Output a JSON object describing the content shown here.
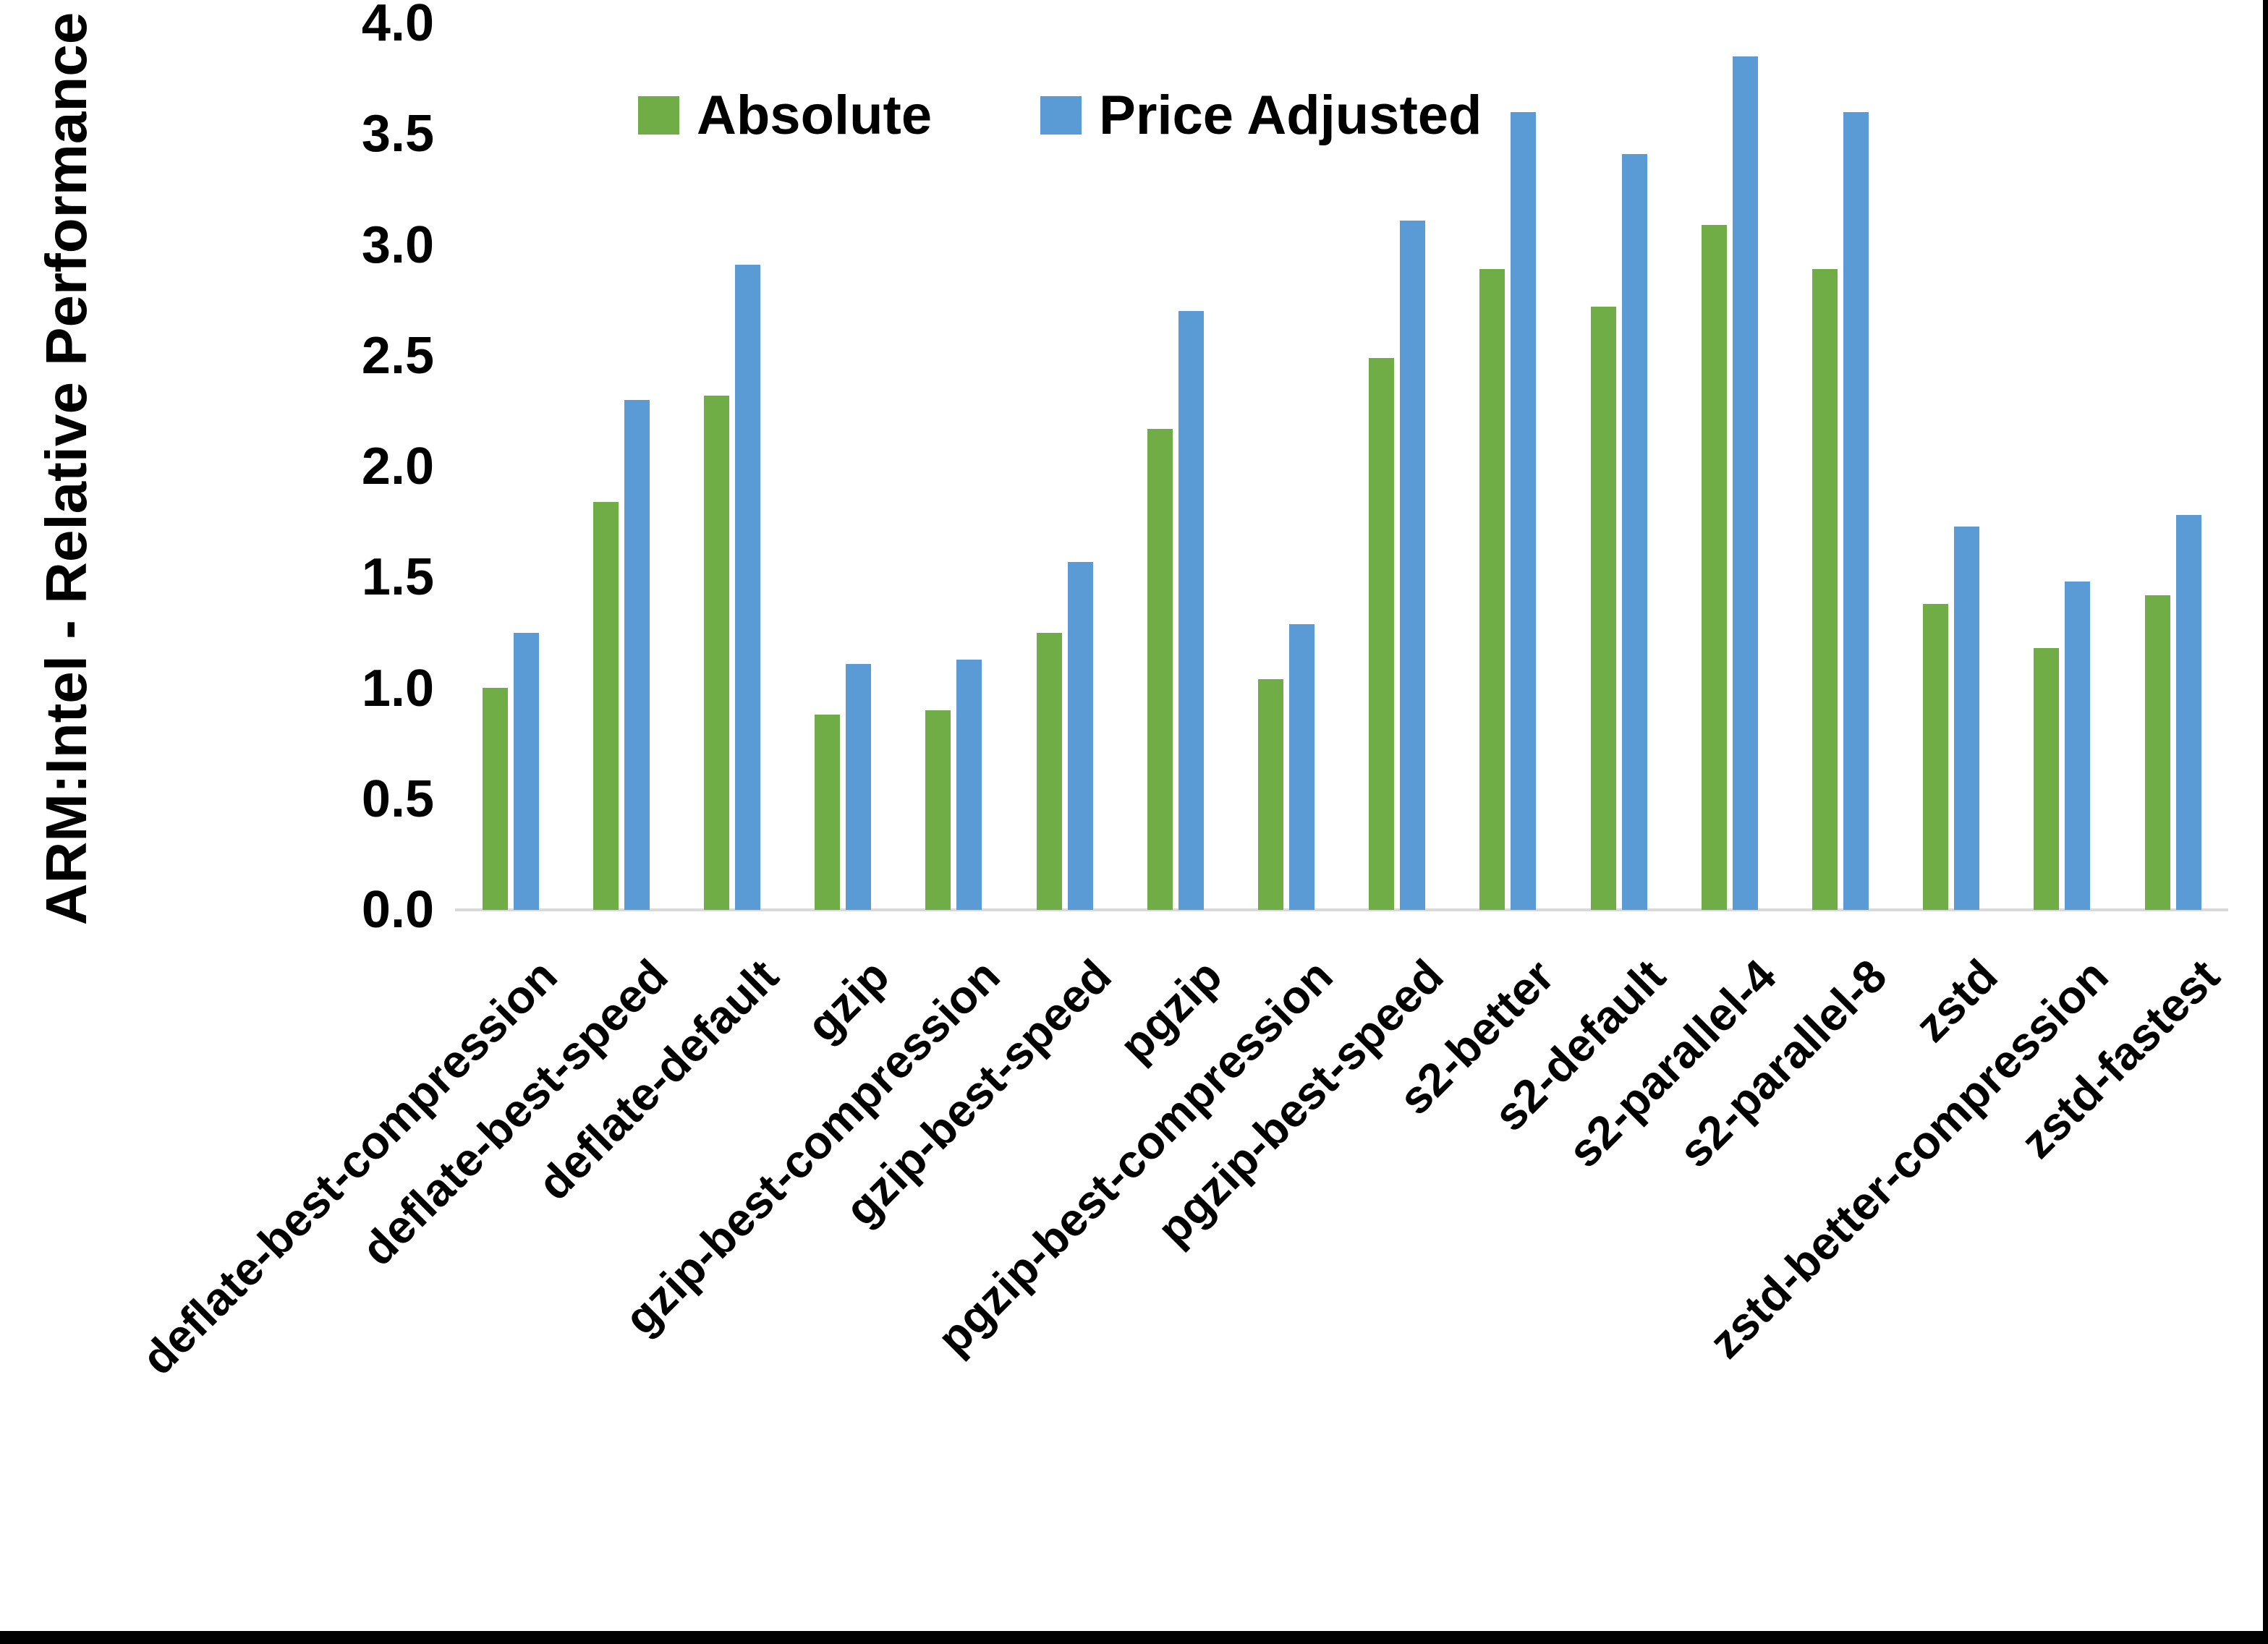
{
  "y_axis": {
    "title": "ARM:Intel - Relative Performance",
    "tick_labels": [
      "4.0",
      "3.5",
      "3.0",
      "2.5",
      "2.0",
      "1.5",
      "1.0",
      "0.5",
      "0.0"
    ]
  },
  "legend": [
    {
      "label": "Absolute",
      "color": "#70AD47"
    },
    {
      "label": "Price Adjusted",
      "color": "#5B9BD5"
    }
  ],
  "colors": {
    "absolute_green": "#70AD47",
    "price_adjusted_blue": "#5B9BD5",
    "axis_line_gray": "#D9D9D9",
    "border_black": "#000000"
  },
  "chart_data": {
    "type": "bar",
    "title": "",
    "xlabel": "",
    "ylabel": "ARM:Intel - Relative Performance",
    "ylim": [
      0,
      4.0
    ],
    "y_tick_step": 0.5,
    "grid": false,
    "legend_position": "top-center",
    "categories": [
      "deflate-best-compression",
      "deflate-best-speed",
      "deflate-default",
      "gzip",
      "gzip-best-compression",
      "gzip-best-speed",
      "pgzip",
      "pgzip-best-compression",
      "pgzip-best-speed",
      "s2-better",
      "s2-default",
      "s2-parallel-4",
      "s2-parallel-8",
      "zstd",
      "zstd-better-compression",
      "zstd-fastest"
    ],
    "series": [
      {
        "name": "Absolute",
        "color": "#70AD47",
        "values": [
          1.0,
          1.84,
          2.32,
          0.88,
          0.9,
          1.25,
          2.17,
          1.04,
          2.49,
          2.89,
          2.72,
          3.09,
          2.89,
          1.38,
          1.18,
          1.42
        ]
      },
      {
        "name": "Price Adjusted",
        "color": "#5B9BD5",
        "values": [
          1.25,
          2.3,
          2.91,
          1.11,
          1.13,
          1.57,
          2.7,
          1.29,
          3.11,
          3.6,
          3.41,
          3.85,
          3.6,
          1.73,
          1.48,
          1.78
        ]
      }
    ]
  }
}
